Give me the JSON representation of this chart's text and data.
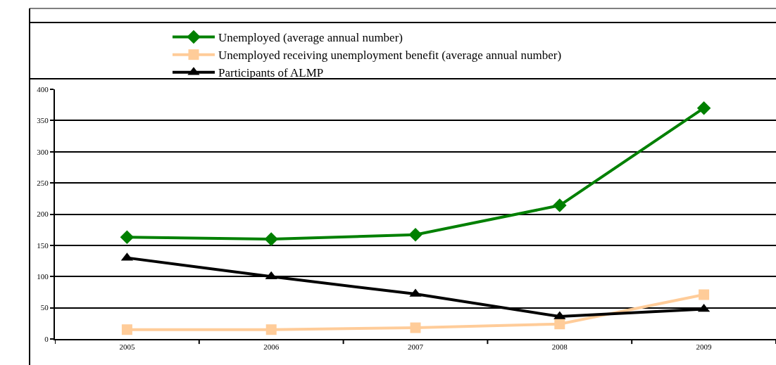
{
  "chart_data": {
    "type": "line",
    "categories": [
      "2005",
      "2006",
      "2007",
      "2008",
      "2009"
    ],
    "series": [
      {
        "name": "Unemployed (average annual number)",
        "color": "#008000",
        "marker": "diamond",
        "values": [
          163,
          160,
          167,
          214,
          370
        ]
      },
      {
        "name": "Unemployed receiving unemployment benefit (average annual number)",
        "color": "#ffcc99",
        "marker": "square",
        "values": [
          15,
          15,
          18,
          24,
          71
        ]
      },
      {
        "name": "Participants of ALMP",
        "color": "#000000",
        "marker": "triangle",
        "values": [
          130,
          100,
          72,
          36,
          48
        ]
      }
    ],
    "ylim": [
      0,
      400
    ],
    "yticks": [
      0,
      50,
      100,
      150,
      200,
      250,
      300,
      350,
      400
    ],
    "grid": "y",
    "legend": "top",
    "line_style": "solid"
  }
}
